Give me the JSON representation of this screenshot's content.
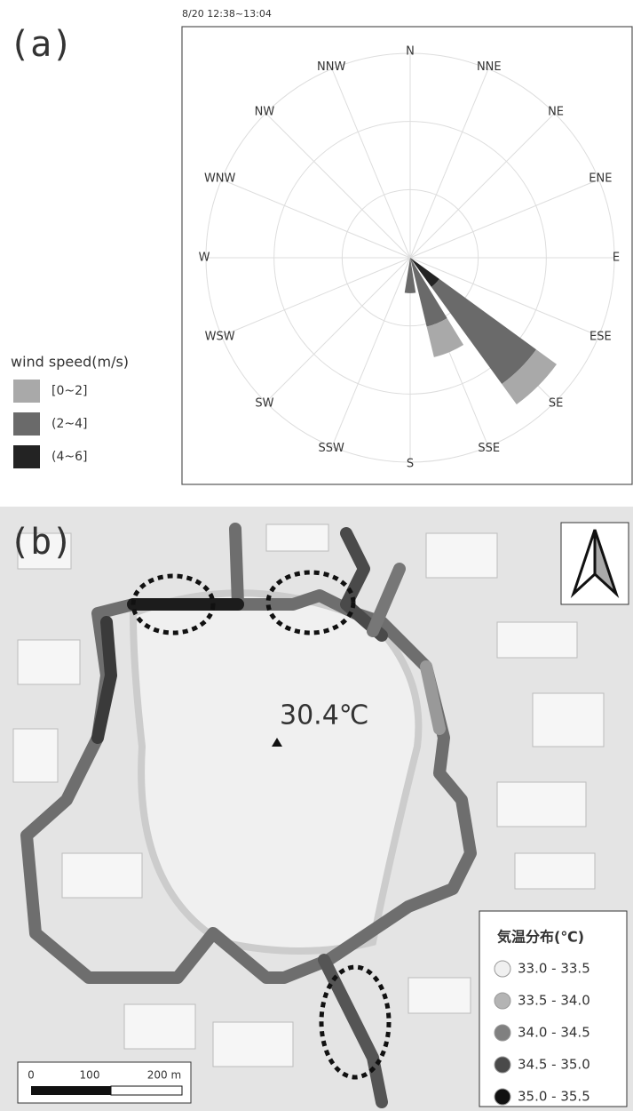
{
  "chart_data": {
    "type": "rose",
    "panel_label": "(a)",
    "title": "8/20 12:38~13:04",
    "categories": [
      "N",
      "NNE",
      "NE",
      "ENE",
      "E",
      "ESE",
      "SE",
      "SSE",
      "S",
      "SSW",
      "SW",
      "WSW",
      "W",
      "WNW",
      "NW",
      "NNW"
    ],
    "legend_title": "wind speed(m/s)",
    "rlim": [
      0,
      3
    ],
    "rticks": [
      1,
      2,
      3
    ],
    "series": [
      {
        "name": "[0~2]",
        "color": "#a9a9a9",
        "values": [
          0,
          0,
          0,
          0,
          0,
          0,
          0.37,
          0.46,
          0,
          0,
          0,
          0,
          0,
          0,
          0,
          0
        ]
      },
      {
        "name": "(2~4]",
        "color": "#6a6a6a",
        "values": [
          0,
          0,
          0,
          0,
          0,
          0,
          1.76,
          1.04,
          0.52,
          0,
          0,
          0,
          0,
          0,
          0,
          0
        ]
      },
      {
        "name": "(4~6]",
        "color": "#232323",
        "values": [
          0,
          0,
          0,
          0,
          0,
          0,
          0.53,
          0,
          0,
          0,
          0,
          0,
          0,
          0,
          0,
          0
        ]
      }
    ]
  },
  "map": {
    "panel_label": "(b)",
    "annotation": "30.4℃",
    "legend": {
      "title": "気温分布(℃)",
      "items": [
        {
          "label": "33.0 - 33.5",
          "color": "#f0f0f0"
        },
        {
          "label": "33.5 - 34.0",
          "color": "#b4b4b4"
        },
        {
          "label": "34.0 - 34.5",
          "color": "#808080"
        },
        {
          "label": "34.5 - 35.0",
          "color": "#4a4a4a"
        },
        {
          "label": "35.0 - 35.5",
          "color": "#111111"
        }
      ]
    },
    "scale_bar": {
      "labels": [
        "0",
        "100",
        "200 m"
      ]
    }
  }
}
